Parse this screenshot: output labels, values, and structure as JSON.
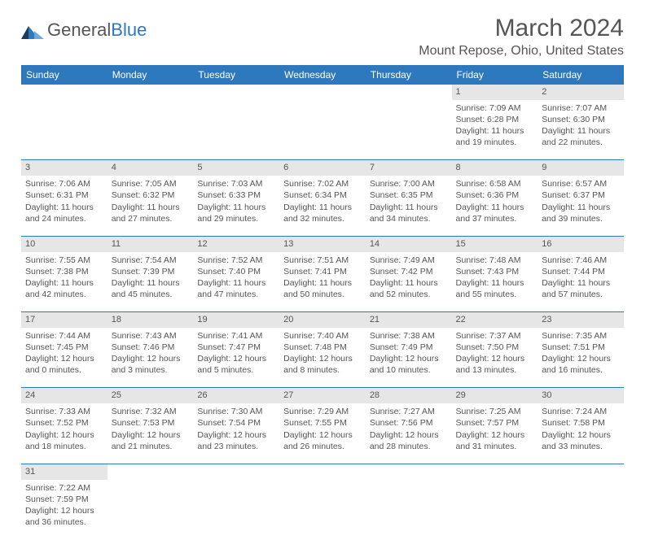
{
  "logo": {
    "word1": "General",
    "word2": "Blue"
  },
  "title": "March 2024",
  "location": "Mount Repose, Ohio, United States",
  "colors": {
    "header_bg": "#2e78bd",
    "daynum_bg": "#e6e6e6",
    "text": "#555555"
  },
  "dayHeaders": [
    "Sunday",
    "Monday",
    "Tuesday",
    "Wednesday",
    "Thursday",
    "Friday",
    "Saturday"
  ],
  "weeks": [
    [
      null,
      null,
      null,
      null,
      null,
      {
        "n": "1",
        "sr": "7:09 AM",
        "ss": "6:28 PM",
        "dl": "11 hours",
        "dm": "and 19 minutes."
      },
      {
        "n": "2",
        "sr": "7:07 AM",
        "ss": "6:30 PM",
        "dl": "11 hours",
        "dm": "and 22 minutes."
      }
    ],
    [
      {
        "n": "3",
        "sr": "7:06 AM",
        "ss": "6:31 PM",
        "dl": "11 hours",
        "dm": "and 24 minutes."
      },
      {
        "n": "4",
        "sr": "7:05 AM",
        "ss": "6:32 PM",
        "dl": "11 hours",
        "dm": "and 27 minutes."
      },
      {
        "n": "5",
        "sr": "7:03 AM",
        "ss": "6:33 PM",
        "dl": "11 hours",
        "dm": "and 29 minutes."
      },
      {
        "n": "6",
        "sr": "7:02 AM",
        "ss": "6:34 PM",
        "dl": "11 hours",
        "dm": "and 32 minutes."
      },
      {
        "n": "7",
        "sr": "7:00 AM",
        "ss": "6:35 PM",
        "dl": "11 hours",
        "dm": "and 34 minutes."
      },
      {
        "n": "8",
        "sr": "6:58 AM",
        "ss": "6:36 PM",
        "dl": "11 hours",
        "dm": "and 37 minutes."
      },
      {
        "n": "9",
        "sr": "6:57 AM",
        "ss": "6:37 PM",
        "dl": "11 hours",
        "dm": "and 39 minutes."
      }
    ],
    [
      {
        "n": "10",
        "sr": "7:55 AM",
        "ss": "7:38 PM",
        "dl": "11 hours",
        "dm": "and 42 minutes."
      },
      {
        "n": "11",
        "sr": "7:54 AM",
        "ss": "7:39 PM",
        "dl": "11 hours",
        "dm": "and 45 minutes."
      },
      {
        "n": "12",
        "sr": "7:52 AM",
        "ss": "7:40 PM",
        "dl": "11 hours",
        "dm": "and 47 minutes."
      },
      {
        "n": "13",
        "sr": "7:51 AM",
        "ss": "7:41 PM",
        "dl": "11 hours",
        "dm": "and 50 minutes."
      },
      {
        "n": "14",
        "sr": "7:49 AM",
        "ss": "7:42 PM",
        "dl": "11 hours",
        "dm": "and 52 minutes."
      },
      {
        "n": "15",
        "sr": "7:48 AM",
        "ss": "7:43 PM",
        "dl": "11 hours",
        "dm": "and 55 minutes."
      },
      {
        "n": "16",
        "sr": "7:46 AM",
        "ss": "7:44 PM",
        "dl": "11 hours",
        "dm": "and 57 minutes."
      }
    ],
    [
      {
        "n": "17",
        "sr": "7:44 AM",
        "ss": "7:45 PM",
        "dl": "12 hours",
        "dm": "and 0 minutes."
      },
      {
        "n": "18",
        "sr": "7:43 AM",
        "ss": "7:46 PM",
        "dl": "12 hours",
        "dm": "and 3 minutes."
      },
      {
        "n": "19",
        "sr": "7:41 AM",
        "ss": "7:47 PM",
        "dl": "12 hours",
        "dm": "and 5 minutes."
      },
      {
        "n": "20",
        "sr": "7:40 AM",
        "ss": "7:48 PM",
        "dl": "12 hours",
        "dm": "and 8 minutes."
      },
      {
        "n": "21",
        "sr": "7:38 AM",
        "ss": "7:49 PM",
        "dl": "12 hours",
        "dm": "and 10 minutes."
      },
      {
        "n": "22",
        "sr": "7:37 AM",
        "ss": "7:50 PM",
        "dl": "12 hours",
        "dm": "and 13 minutes."
      },
      {
        "n": "23",
        "sr": "7:35 AM",
        "ss": "7:51 PM",
        "dl": "12 hours",
        "dm": "and 16 minutes."
      }
    ],
    [
      {
        "n": "24",
        "sr": "7:33 AM",
        "ss": "7:52 PM",
        "dl": "12 hours",
        "dm": "and 18 minutes."
      },
      {
        "n": "25",
        "sr": "7:32 AM",
        "ss": "7:53 PM",
        "dl": "12 hours",
        "dm": "and 21 minutes."
      },
      {
        "n": "26",
        "sr": "7:30 AM",
        "ss": "7:54 PM",
        "dl": "12 hours",
        "dm": "and 23 minutes."
      },
      {
        "n": "27",
        "sr": "7:29 AM",
        "ss": "7:55 PM",
        "dl": "12 hours",
        "dm": "and 26 minutes."
      },
      {
        "n": "28",
        "sr": "7:27 AM",
        "ss": "7:56 PM",
        "dl": "12 hours",
        "dm": "and 28 minutes."
      },
      {
        "n": "29",
        "sr": "7:25 AM",
        "ss": "7:57 PM",
        "dl": "12 hours",
        "dm": "and 31 minutes."
      },
      {
        "n": "30",
        "sr": "7:24 AM",
        "ss": "7:58 PM",
        "dl": "12 hours",
        "dm": "and 33 minutes."
      }
    ],
    [
      {
        "n": "31",
        "sr": "7:22 AM",
        "ss": "7:59 PM",
        "dl": "12 hours",
        "dm": "and 36 minutes."
      },
      null,
      null,
      null,
      null,
      null,
      null
    ]
  ],
  "labels": {
    "sunrise": "Sunrise: ",
    "sunset": "Sunset: ",
    "daylight": "Daylight: "
  }
}
